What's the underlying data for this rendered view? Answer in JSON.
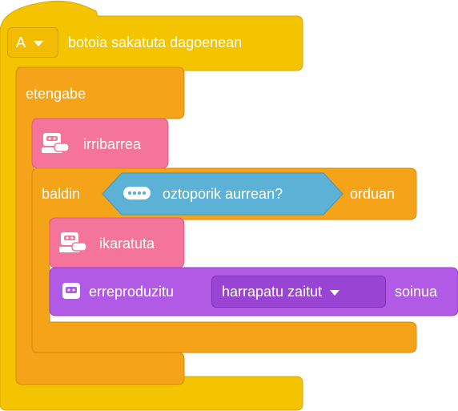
{
  "hat_block": {
    "key_value": "A",
    "label": "botoia sakatuta dagoenean"
  },
  "forever_block": {
    "label": "etengabe"
  },
  "expression_block_1": {
    "label": "irribarrea"
  },
  "if_block": {
    "prefix": "baldin",
    "suffix": "orduan",
    "condition": {
      "label": "oztoporik aurrean?"
    }
  },
  "expression_block_2": {
    "label": "ikaratuta"
  },
  "sound_block": {
    "prefix": "erreproduzitu",
    "sound_value": "harrapatu zaitut",
    "suffix": "soinua"
  },
  "colors": {
    "events": "#f5c400",
    "control": "#f5a319",
    "looks": "#f5749b",
    "sensing": "#5cb1d6",
    "sound": "#b05ae6"
  },
  "icons": {
    "expression": "robot-face-icon",
    "sensor": "sensor-dots-icon",
    "sound": "robot-speaker-icon"
  }
}
